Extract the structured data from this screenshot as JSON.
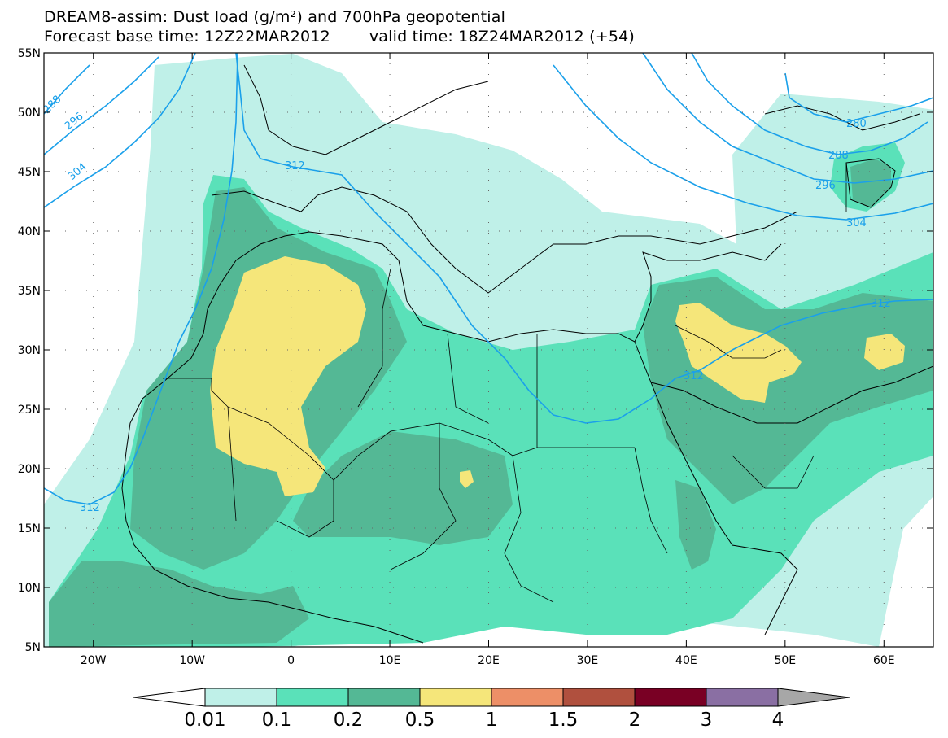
{
  "title": {
    "line1": "DREAM8-assim: Dust load (g/m²) and 700hPa geopotential",
    "line2_left": "Forecast base time: 12Z22MAR2012",
    "line2_right": "valid time: 18Z24MAR2012 (+54)"
  },
  "axes": {
    "lat_labels": [
      "55N",
      "50N",
      "45N",
      "40N",
      "35N",
      "30N",
      "25N",
      "20N",
      "15N",
      "10N",
      "5N"
    ],
    "lon_labels": [
      "20W",
      "10W",
      "0",
      "10E",
      "20E",
      "30E",
      "40E",
      "50E",
      "60E"
    ]
  },
  "contour_labels": [
    "288",
    "296",
    "304",
    "312",
    "312",
    "312",
    "312",
    "280",
    "288",
    "296",
    "304"
  ],
  "colorbar": {
    "colors": [
      "#bff0e8",
      "#5ae1b9",
      "#54b895",
      "#f5e67a",
      "#ed8f67",
      "#b0503e",
      "#790024",
      "#8a6fa3"
    ],
    "under_color": "#ffffff",
    "over_color": "#a7a7a7",
    "labels": [
      "0.01",
      "0.1",
      "0.2",
      "0.5",
      "1",
      "1.5",
      "2",
      "3",
      "4"
    ]
  }
}
